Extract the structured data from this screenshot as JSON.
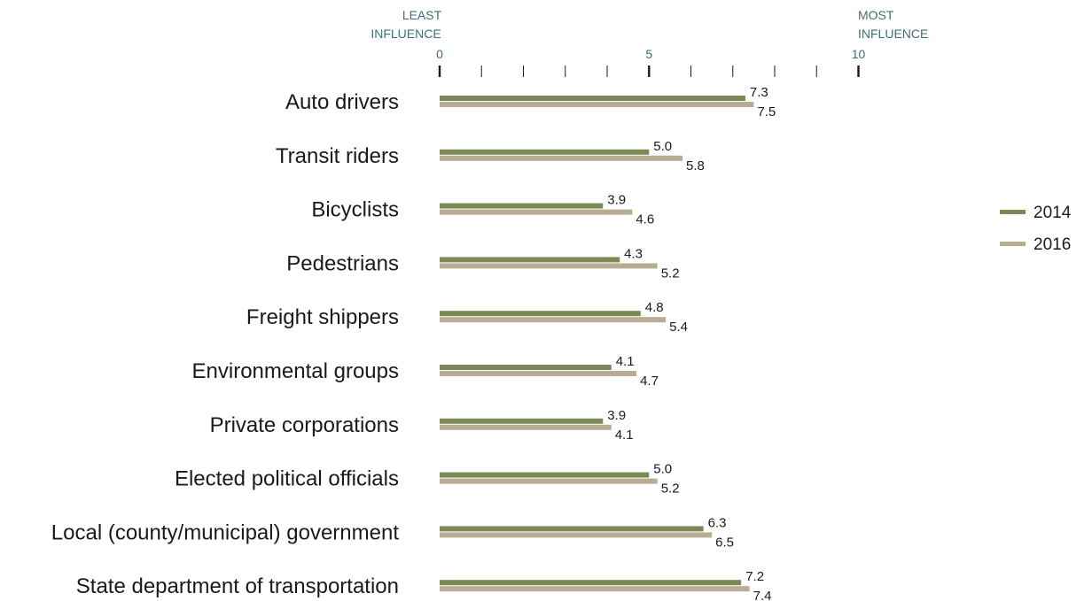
{
  "chart_data": {
    "type": "bar",
    "orientation": "horizontal",
    "categories": [
      "Auto drivers",
      "Transit riders",
      "Bicyclists",
      "Pedestrians",
      "Freight shippers",
      "Environmental groups",
      "Private corporations",
      "Elected political officials",
      "Local (county/municipal) government",
      "State department of transportation"
    ],
    "series": [
      {
        "name": "2014",
        "color": "#7a8a57",
        "values": [
          7.3,
          5.0,
          3.9,
          4.3,
          4.8,
          4.1,
          3.9,
          5.0,
          6.3,
          7.2
        ],
        "labels": [
          "7.3",
          "5.0",
          "3.9",
          "4.3",
          "4.8",
          "4.1",
          "3.9",
          "5.0",
          "6.3",
          "7.2"
        ]
      },
      {
        "name": "2016",
        "color": "#b8ac95",
        "values": [
          7.5,
          5.8,
          4.6,
          5.2,
          5.4,
          4.7,
          4.1,
          5.2,
          6.5,
          7.4
        ],
        "labels": [
          "7.5",
          "5.8",
          "4.6",
          "5.2",
          "5.4",
          "4.7",
          "4.1",
          "5.2",
          "6.5",
          "7.4"
        ]
      }
    ],
    "xlim": [
      0,
      10
    ],
    "tick_labels": [
      {
        "value": 0,
        "label": "0"
      },
      {
        "value": 5,
        "label": "5"
      },
      {
        "value": 10,
        "label": "10"
      }
    ],
    "minor_ticks": [
      1,
      2,
      3,
      4,
      6,
      7,
      8,
      9
    ],
    "axis_end_labels": {
      "left": [
        "LEAST",
        "INFLUENCE"
      ],
      "right": [
        "MOST",
        "INFLUENCE"
      ]
    },
    "legend_position": "right",
    "grid": false
  }
}
